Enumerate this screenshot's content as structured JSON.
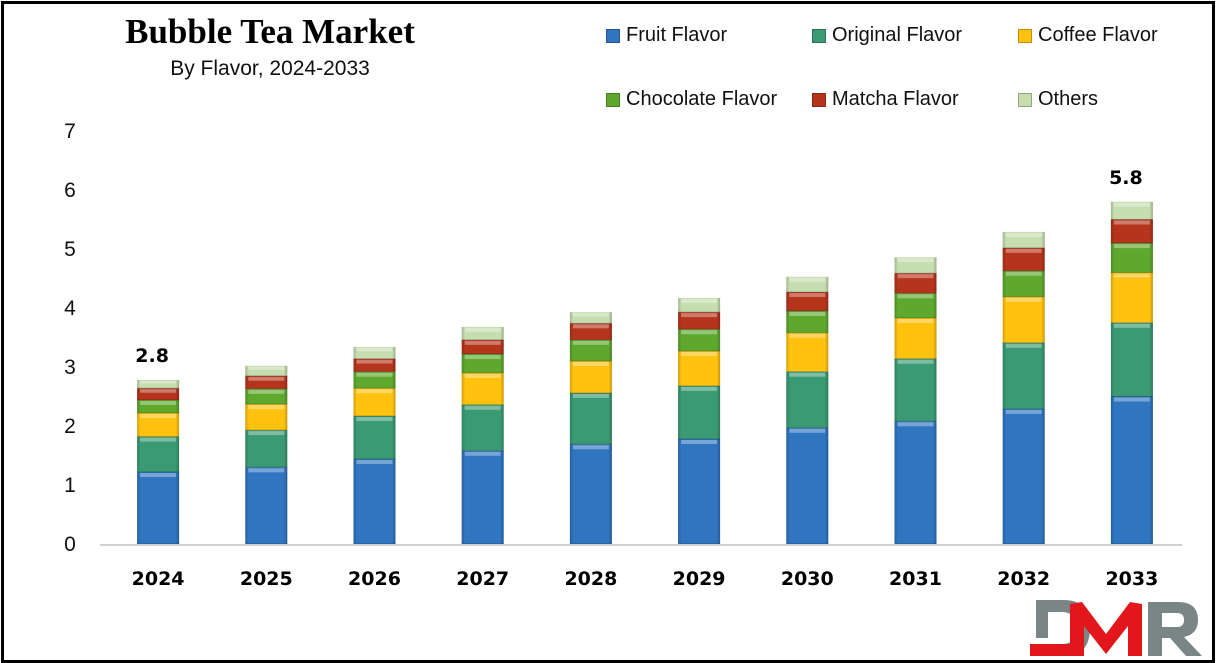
{
  "chart_data": {
    "type": "bar",
    "stacked": true,
    "title": "Bubble Tea Market",
    "subtitle": "By Flavor, 2024-2033",
    "xlabel": "",
    "ylabel": "",
    "ylim": [
      0,
      7
    ],
    "yticks": [
      "0",
      "1",
      "2",
      "3",
      "4",
      "5",
      "6",
      "7"
    ],
    "grid": false,
    "legend_position": "top-right",
    "categories": [
      "2024",
      "2025",
      "2026",
      "2027",
      "2028",
      "2029",
      "2030",
      "2031",
      "2032",
      "2033"
    ],
    "series": [
      {
        "name": "Fruit Flavor",
        "color": "#2F75C0",
        "values": [
          1.22,
          1.3,
          1.44,
          1.58,
          1.69,
          1.78,
          1.97,
          2.08,
          2.29,
          2.5
        ]
      },
      {
        "name": "Original Flavor",
        "color": "#3A9A73",
        "values": [
          0.6,
          0.63,
          0.73,
          0.78,
          0.87,
          0.9,
          0.95,
          1.06,
          1.12,
          1.25
        ]
      },
      {
        "name": "Coffee Flavor",
        "color": "#FFC20E",
        "values": [
          0.4,
          0.44,
          0.47,
          0.54,
          0.54,
          0.59,
          0.66,
          0.69,
          0.78,
          0.85
        ]
      },
      {
        "name": "Chocolate Flavor",
        "color": "#5FA82E",
        "values": [
          0.22,
          0.26,
          0.28,
          0.32,
          0.36,
          0.37,
          0.37,
          0.42,
          0.44,
          0.5
        ]
      },
      {
        "name": "Matcha Flavor",
        "color": "#B5341C",
        "values": [
          0.2,
          0.22,
          0.22,
          0.24,
          0.28,
          0.29,
          0.32,
          0.34,
          0.39,
          0.4
        ]
      },
      {
        "name": "Others",
        "color": "#C6DDB0",
        "values": [
          0.14,
          0.17,
          0.2,
          0.22,
          0.19,
          0.24,
          0.26,
          0.27,
          0.27,
          0.3
        ]
      }
    ],
    "annotations": [
      {
        "category": "2024",
        "text": "2.8"
      },
      {
        "category": "2033",
        "text": "5.8"
      }
    ]
  },
  "branding": {
    "logo_text": "DMR",
    "logo_colors": {
      "D": "#7A8585",
      "M": "#E3171B",
      "R": "#7A8585"
    }
  }
}
